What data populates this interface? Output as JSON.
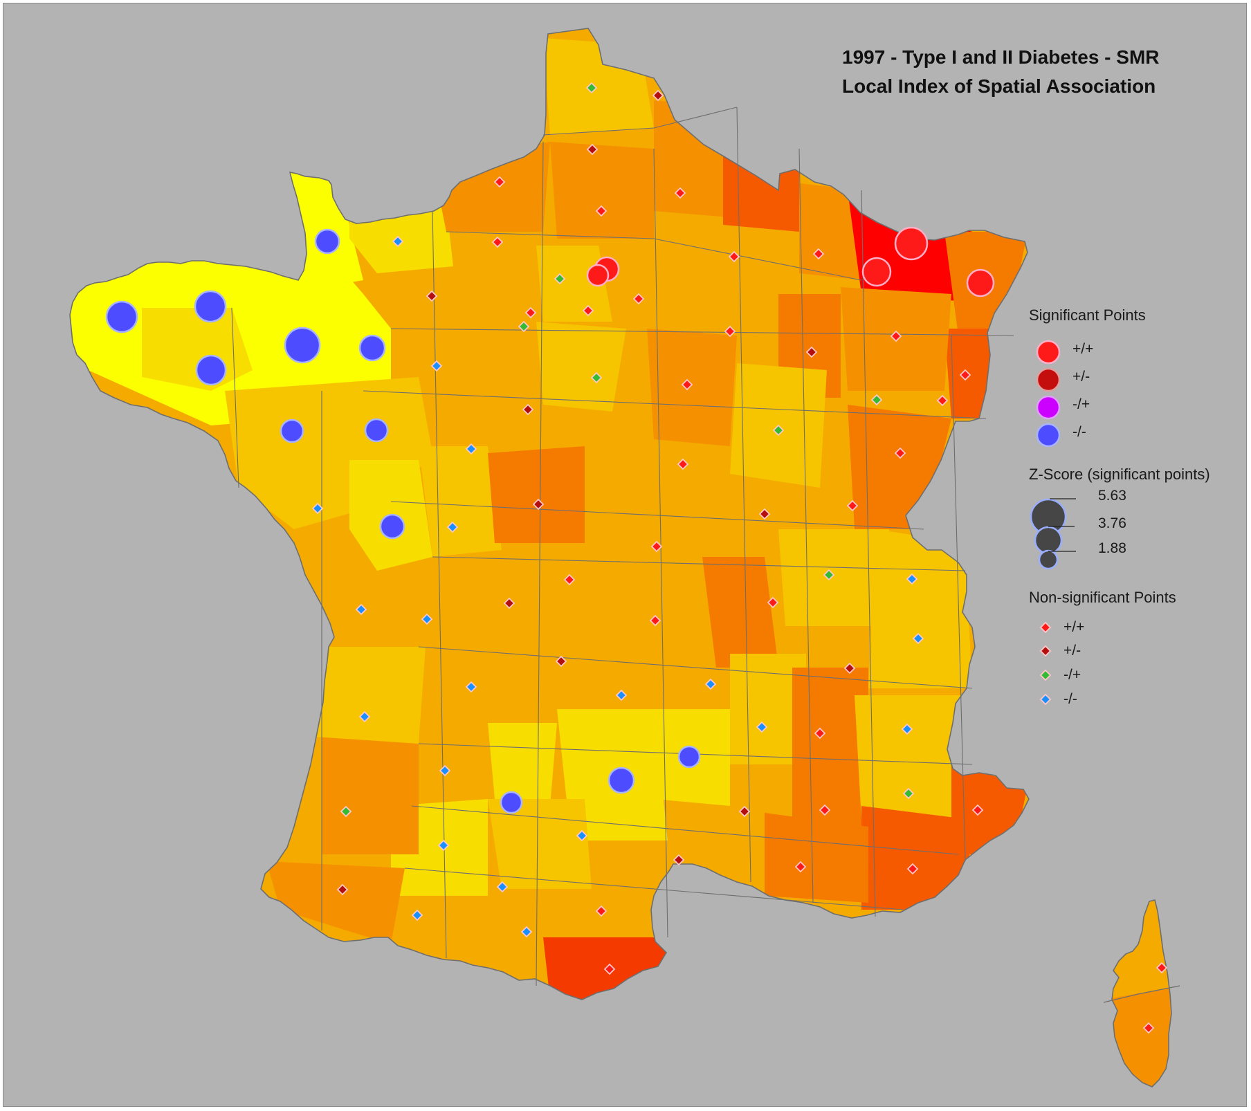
{
  "map": {
    "title_line1": "1997 - Type I and II Diabetes - SMR",
    "title_line2": "Local Index of Spatial Association",
    "background_color": "#b3b3b3",
    "border_color": "#6e6e6e"
  },
  "legend": {
    "significant": {
      "heading": "Significant Points",
      "items": [
        {
          "label": "+/+",
          "color": "#ff1a1a"
        },
        {
          "label": "+/-",
          "color": "#c40d0d"
        },
        {
          "label": "-/+",
          "color": "#cc00ff"
        },
        {
          "label": "-/-",
          "color": "#4d4dff"
        }
      ]
    },
    "zscore": {
      "heading": "Z-Score (significant points)",
      "values": [
        "5.63",
        "3.76",
        "1.88"
      ],
      "symbol_color": "#464646"
    },
    "nonsignificant": {
      "heading": "Non-significant Points",
      "items": [
        {
          "label": "+/+",
          "color": "#ff1a1a"
        },
        {
          "label": "+/-",
          "color": "#b30f0f"
        },
        {
          "label": "-/+",
          "color": "#33bb33"
        },
        {
          "label": "-/-",
          "color": "#1a90ff"
        }
      ]
    }
  },
  "smr_color_scale": [
    "#fbff00",
    "#f7dd00",
    "#f7c400",
    "#f5aa00",
    "#f59100",
    "#f57a00",
    "#f55a00",
    "#f53a00",
    "#ff0000"
  ]
}
